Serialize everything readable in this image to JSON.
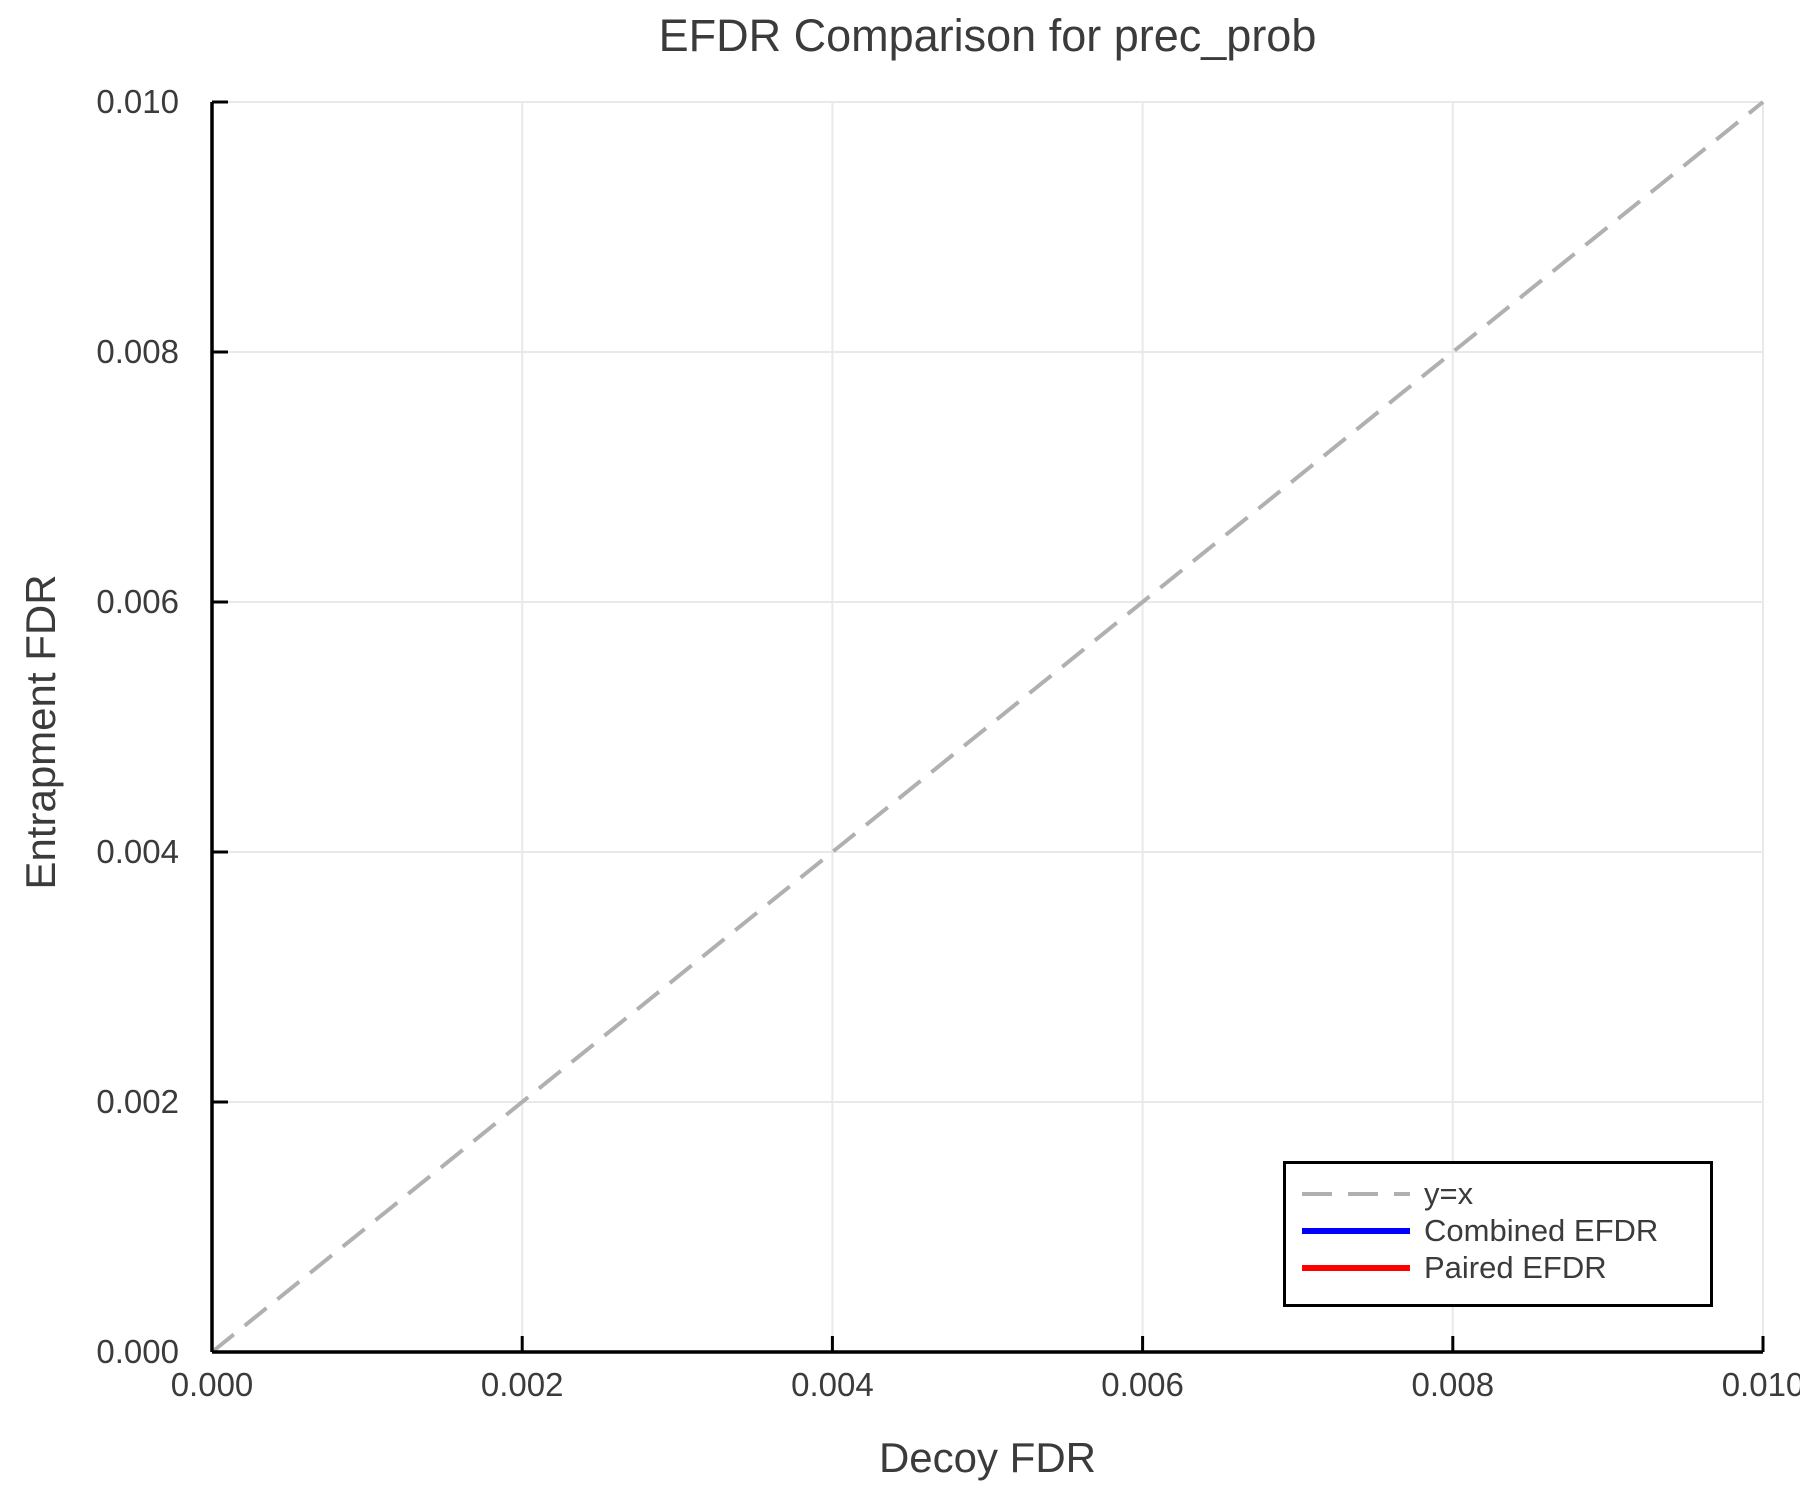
{
  "figure": {
    "background_color": "#ffffff"
  },
  "chart_data": {
    "type": "line",
    "title": "EFDR Comparison for prec_prob",
    "xlabel": "Decoy FDR",
    "ylabel": "Entrapment FDR",
    "xlim": [
      0.0,
      0.01
    ],
    "ylim": [
      0.0,
      0.01
    ],
    "x_ticks": [
      0.0,
      0.002,
      0.004,
      0.006,
      0.008,
      0.01
    ],
    "y_ticks": [
      0.0,
      0.002,
      0.004,
      0.006,
      0.008,
      0.01
    ],
    "x_tick_labels": [
      "0.000",
      "0.002",
      "0.004",
      "0.006",
      "0.008",
      "0.010"
    ],
    "y_tick_labels": [
      "0.000",
      "0.002",
      "0.004",
      "0.006",
      "0.008",
      "0.010"
    ],
    "grid": true,
    "legend_position": "bottom-right",
    "style": {
      "grid_color": "#e9e9e9",
      "axis_color": "#000000",
      "text_color": "#3b3b3b"
    },
    "series": [
      {
        "name": "y=x",
        "style": "dashed",
        "color": "#b0b0b0",
        "points": [
          [
            0.0,
            0.0
          ],
          [
            0.01,
            0.01
          ]
        ]
      },
      {
        "name": "Combined EFDR",
        "style": "solid",
        "color": "#0000ff",
        "points": []
      },
      {
        "name": "Paired EFDR",
        "style": "solid",
        "color": "#ff0000",
        "points": []
      }
    ]
  }
}
